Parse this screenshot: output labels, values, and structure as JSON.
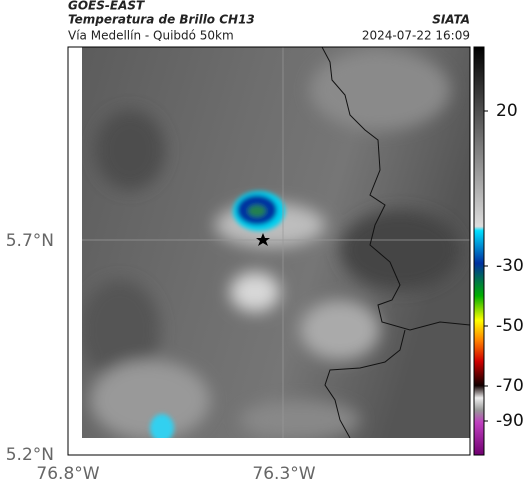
{
  "header": {
    "source": "GOES-EAST",
    "title": "Temperatura de Brillo CH13",
    "owner": "SIATA",
    "subtitle": "Vía Medellín - Quibdó 50km",
    "timestamp": "2024-07-22 16:09"
  },
  "map": {
    "lat_labels": [
      "5.7°N",
      "5.2°N"
    ],
    "lon_labels": [
      "76.8°W",
      "76.3°W"
    ]
  },
  "colorbar": {
    "labels": [
      "20",
      "-30",
      "-50",
      "-70",
      "-90"
    ]
  }
}
